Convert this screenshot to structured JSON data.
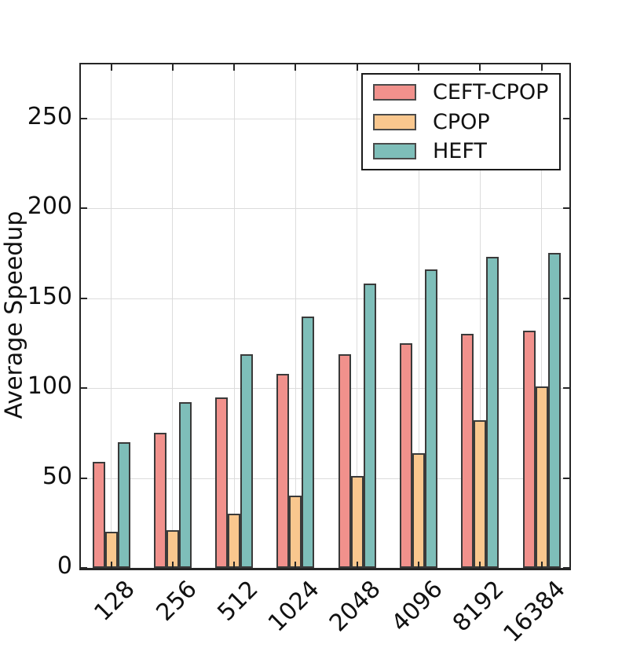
{
  "chart_data": {
    "type": "bar",
    "title": "",
    "ylabel": "Average Speedup",
    "xlabel": "",
    "categories": [
      "128",
      "256",
      "512",
      "1024",
      "2048",
      "4096",
      "8192",
      "16384"
    ],
    "series": [
      {
        "name": "CEFT-CPOP",
        "color": "#F1918C",
        "values": [
          59,
          75,
          95,
          108,
          119,
          125,
          130,
          132
        ]
      },
      {
        "name": "CPOP",
        "color": "#F9C78E",
        "values": [
          20,
          21,
          30,
          40,
          51,
          64,
          82,
          101
        ]
      },
      {
        "name": "HEFT",
        "color": "#7EBEB9",
        "values": [
          70,
          92,
          119,
          140,
          158,
          166,
          173,
          175
        ]
      }
    ],
    "ylim": [
      0,
      280
    ],
    "yticks": [
      0,
      50,
      100,
      150,
      200,
      250
    ],
    "grid": true,
    "grid_color": "#dcdcdc",
    "bar_edge_color": "#3a3a3a",
    "legend_position": "upper right",
    "legend_labels": [
      "CEFT-CPOP",
      "CPOP",
      "HEFT"
    ]
  }
}
